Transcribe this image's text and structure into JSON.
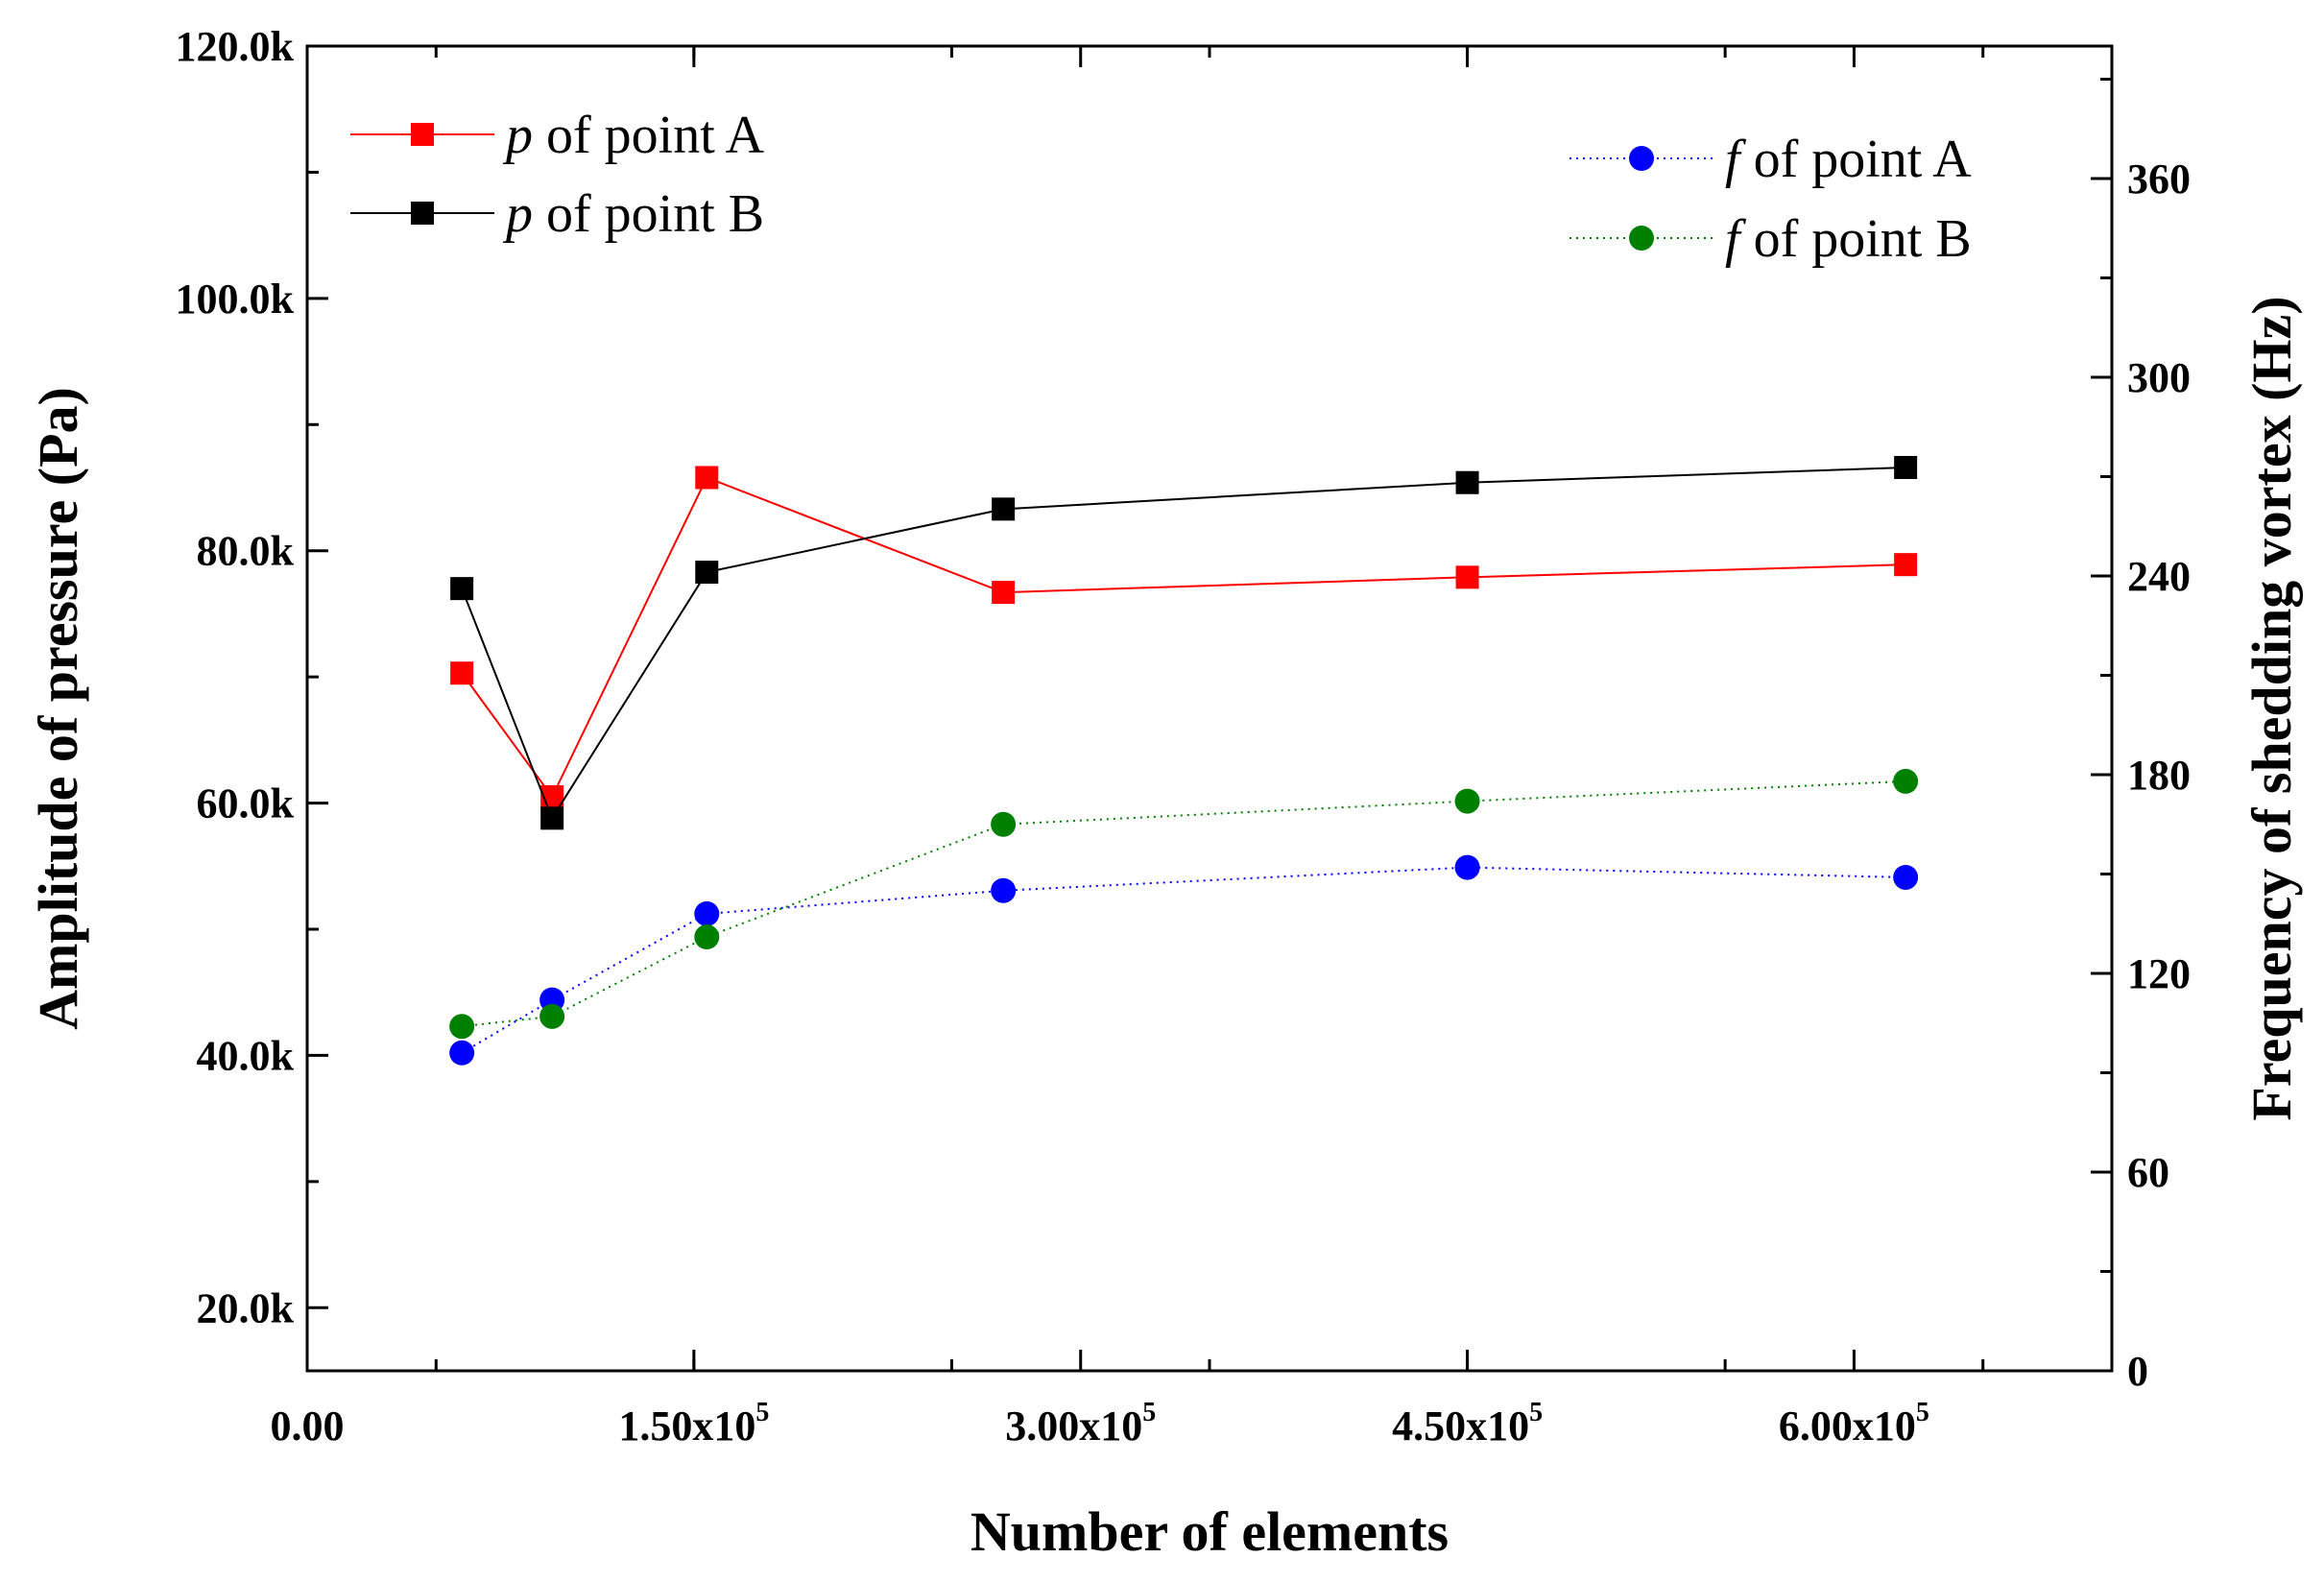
{
  "chart_data": {
    "type": "line",
    "xlabel": "Number of elements",
    "ylabel_left": "Amplitude of pressure (Pa)",
    "ylabel_right": "Frequency of shedding vortex (Hz)",
    "xlim": [
      0,
      700000
    ],
    "ylim_left": [
      15000,
      120000
    ],
    "ylim_right": [
      0,
      400
    ],
    "x_ticks": [
      {
        "value": 0,
        "label": "0.00",
        "exp": ""
      },
      {
        "value": 150000,
        "label": "1.50x10",
        "exp": "5"
      },
      {
        "value": 300000,
        "label": "3.00x10",
        "exp": "5"
      },
      {
        "value": 450000,
        "label": "4.50x10",
        "exp": "5"
      },
      {
        "value": 600000,
        "label": "6.00x10",
        "exp": "5"
      }
    ],
    "y_left_ticks": [
      {
        "value": 20000,
        "label": "20.0k"
      },
      {
        "value": 40000,
        "label": "40.0k"
      },
      {
        "value": 60000,
        "label": "60.0k"
      },
      {
        "value": 80000,
        "label": "80.0k"
      },
      {
        "value": 100000,
        "label": "100.0k"
      },
      {
        "value": 120000,
        "label": "120.0k"
      }
    ],
    "y_right_ticks": [
      {
        "value": 0,
        "label": "0"
      },
      {
        "value": 60,
        "label": "60"
      },
      {
        "value": 120,
        "label": "120"
      },
      {
        "value": 180,
        "label": "180"
      },
      {
        "value": 240,
        "label": "240"
      },
      {
        "value": 300,
        "label": "300"
      },
      {
        "value": 360,
        "label": "360"
      }
    ],
    "x": [
      60000,
      95000,
      155000,
      270000,
      450000,
      620000
    ],
    "series": [
      {
        "name": "p of point A",
        "symbol": "p",
        "text": " of point A",
        "axis": "left",
        "marker": "square",
        "color": "#ff0000",
        "line_style": "solid",
        "values": [
          70300,
          60500,
          85800,
          76700,
          77900,
          78900
        ]
      },
      {
        "name": "p of point B",
        "symbol": "p",
        "text": " of point B",
        "axis": "left",
        "marker": "square",
        "color": "#000000",
        "line_style": "solid",
        "values": [
          77000,
          58800,
          78300,
          83300,
          85400,
          86600
        ]
      },
      {
        "name": "f of point A",
        "symbol": "f",
        "text": " of point A",
        "axis": "right",
        "marker": "circle",
        "color": "#0000ff",
        "line_style": "dotted",
        "values": [
          96,
          112,
          138,
          145,
          152,
          149
        ]
      },
      {
        "name": "f of point B",
        "symbol": "f",
        "text": " of point B",
        "axis": "right",
        "marker": "circle",
        "color": "#008000",
        "line_style": "dotted",
        "values": [
          104,
          107,
          131,
          165,
          172,
          178
        ]
      }
    ]
  }
}
